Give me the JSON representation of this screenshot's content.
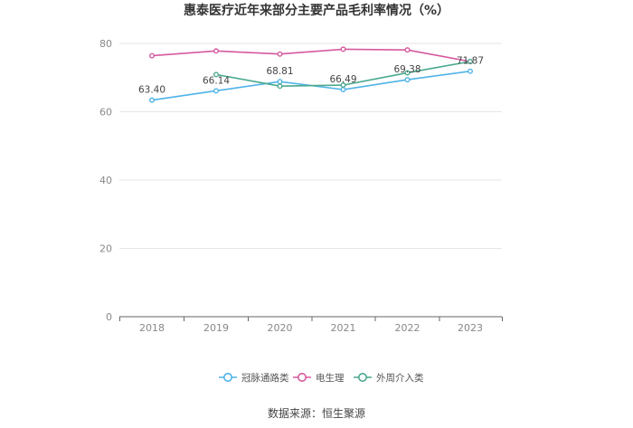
{
  "chart_data": {
    "type": "line",
    "title": "惠泰医疗近年来部分主要产品毛利率情况（%）",
    "categories": [
      "2018",
      "2019",
      "2020",
      "2021",
      "2022",
      "2023"
    ],
    "ylim": [
      0,
      80
    ],
    "yticks": [
      "0",
      "20",
      "40",
      "60",
      "80"
    ],
    "grid": true,
    "legend_position": "bottom",
    "series": [
      {
        "name": "冠脉通路类",
        "color": "#4fb3e8",
        "values": [
          63.4,
          66.14,
          68.81,
          66.49,
          69.38,
          71.87
        ],
        "labels": [
          "63.40",
          "66.14",
          "68.81",
          "66.49",
          "69.38",
          "71.87"
        ]
      },
      {
        "name": "电生理",
        "color": "#d6599f",
        "values": [
          76.4,
          77.8,
          76.9,
          78.3,
          78.1,
          74.7
        ]
      },
      {
        "name": "外周介入类",
        "color": "#4aa98f",
        "values": [
          null,
          70.9,
          67.5,
          67.8,
          71.4,
          74.7
        ]
      }
    ]
  },
  "source": "数据来源：恒生聚源"
}
